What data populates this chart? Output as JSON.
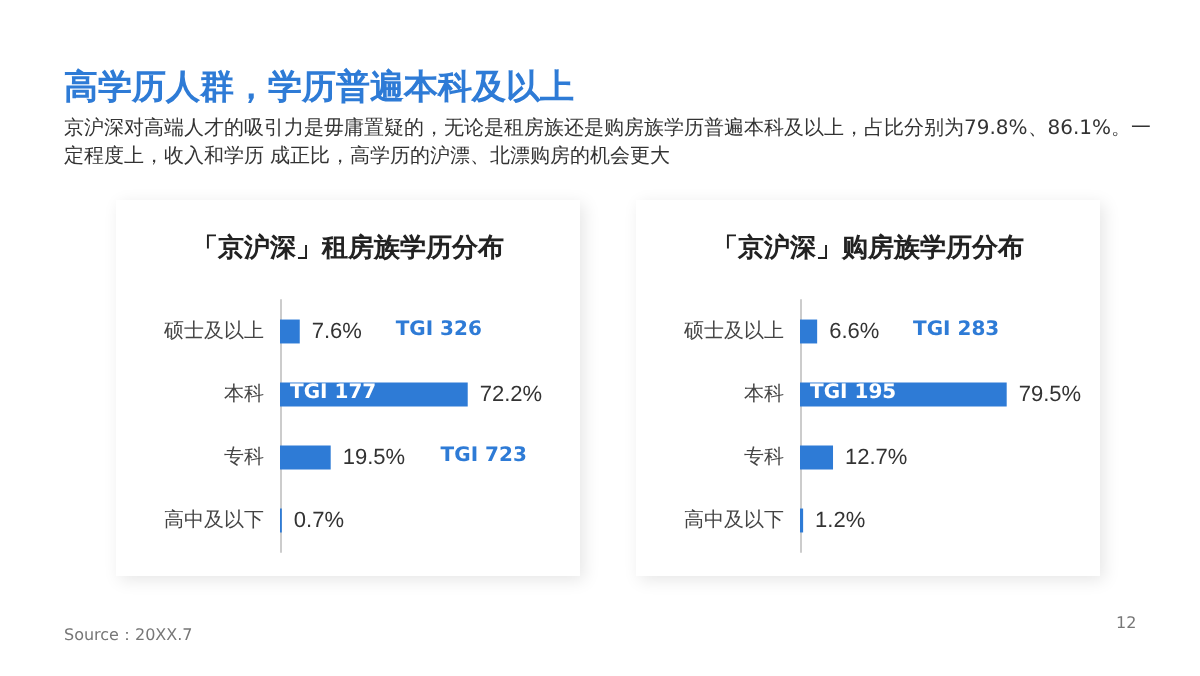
{
  "chart_data": [
    {
      "type": "bar",
      "orientation": "horizontal",
      "title": "「京沪深」租房族学历分布",
      "categories": [
        "硕士及以上",
        "本科",
        "专科",
        "高中及以下"
      ],
      "values": [
        7.6,
        72.2,
        19.5,
        0.7
      ],
      "value_labels": [
        "7.6%",
        "72.2%",
        "19.5%",
        "0.7%"
      ],
      "color": "#2e7bd6",
      "annotations": [
        "高学历人群，学历普遍本科及以上",
        "京沪深对高端人才的吸引力是毋庸置疑的，无论是租房族还是购房族学历普遍本科及以上，占比分别为79.8%、86.1%。一定程度上，收入和学历 成正比，高学历的沪漂、北漂购房的机会更大",
        "TGI 326",
        "TGI 177",
        "TGI 723"
      ]
    },
    {
      "type": "bar",
      "orientation": "horizontal",
      "title": "「京沪深」购房族学历分布",
      "categories": [
        "硕士及以上",
        "本科",
        "专科",
        "高中及以下"
      ],
      "values": [
        6.6,
        79.5,
        12.7,
        1.2
      ],
      "value_labels": [
        "6.6%",
        "79.5%",
        "12.7%",
        "1.2%"
      ],
      "color": "#2e7bd6",
      "annotations": [
        "Source：20XX.7",
        "12",
        "TGI 283",
        "TGI 195"
      ]
    }
  ]
}
